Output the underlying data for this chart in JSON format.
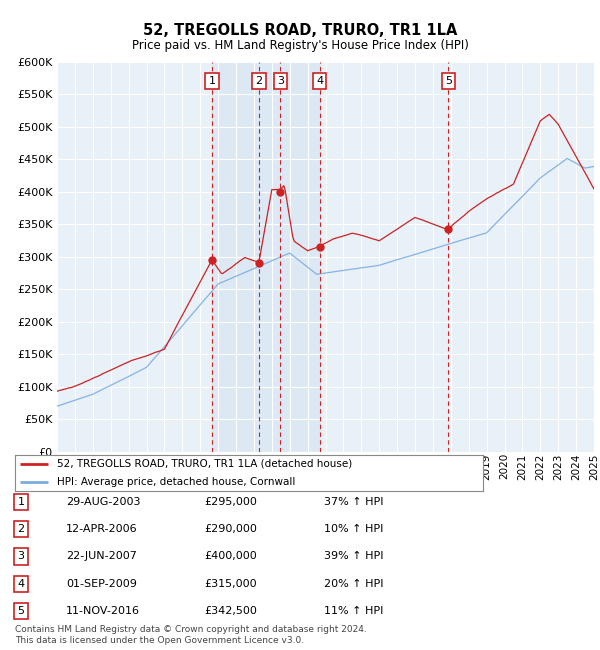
{
  "title": "52, TREGOLLS ROAD, TRURO, TR1 1LA",
  "subtitle": "Price paid vs. HM Land Registry's House Price Index (HPI)",
  "footnote": "Contains HM Land Registry data © Crown copyright and database right 2024.\nThis data is licensed under the Open Government Licence v3.0.",
  "legend_line1": "52, TREGOLLS ROAD, TRURO, TR1 1LA (detached house)",
  "legend_line2": "HPI: Average price, detached house, Cornwall",
  "ylim": [
    0,
    600000
  ],
  "yticks": [
    0,
    50000,
    100000,
    150000,
    200000,
    250000,
    300000,
    350000,
    400000,
    450000,
    500000,
    550000,
    600000
  ],
  "xlim_start": 1995,
  "xlim_end": 2025,
  "sale_events": [
    {
      "num": 1,
      "date_str": "29-AUG-2003",
      "price": 295000,
      "price_str": "£295,000",
      "pct": "37%",
      "date_x": 2003.66
    },
    {
      "num": 2,
      "date_str": "12-APR-2006",
      "price": 290000,
      "price_str": "£290,000",
      "pct": "10%",
      "date_x": 2006.28
    },
    {
      "num": 3,
      "date_str": "22-JUN-2007",
      "price": 400000,
      "price_str": "£400,000",
      "pct": "39%",
      "date_x": 2007.47
    },
    {
      "num": 4,
      "date_str": "01-SEP-2009",
      "price": 315000,
      "price_str": "£315,000",
      "pct": "20%",
      "date_x": 2009.67
    },
    {
      "num": 5,
      "date_str": "11-NOV-2016",
      "price": 342500,
      "price_str": "£342,500",
      "pct": "11%",
      "date_x": 2016.86
    }
  ],
  "shade_color": "#dce9f5",
  "background_color": "#e8f0f8",
  "grid_color": "#ffffff",
  "red_line_color": "#cc2222",
  "blue_line_color": "#7aace0",
  "box_edge_color": "#cc2222",
  "dot_color": "#cc2222"
}
